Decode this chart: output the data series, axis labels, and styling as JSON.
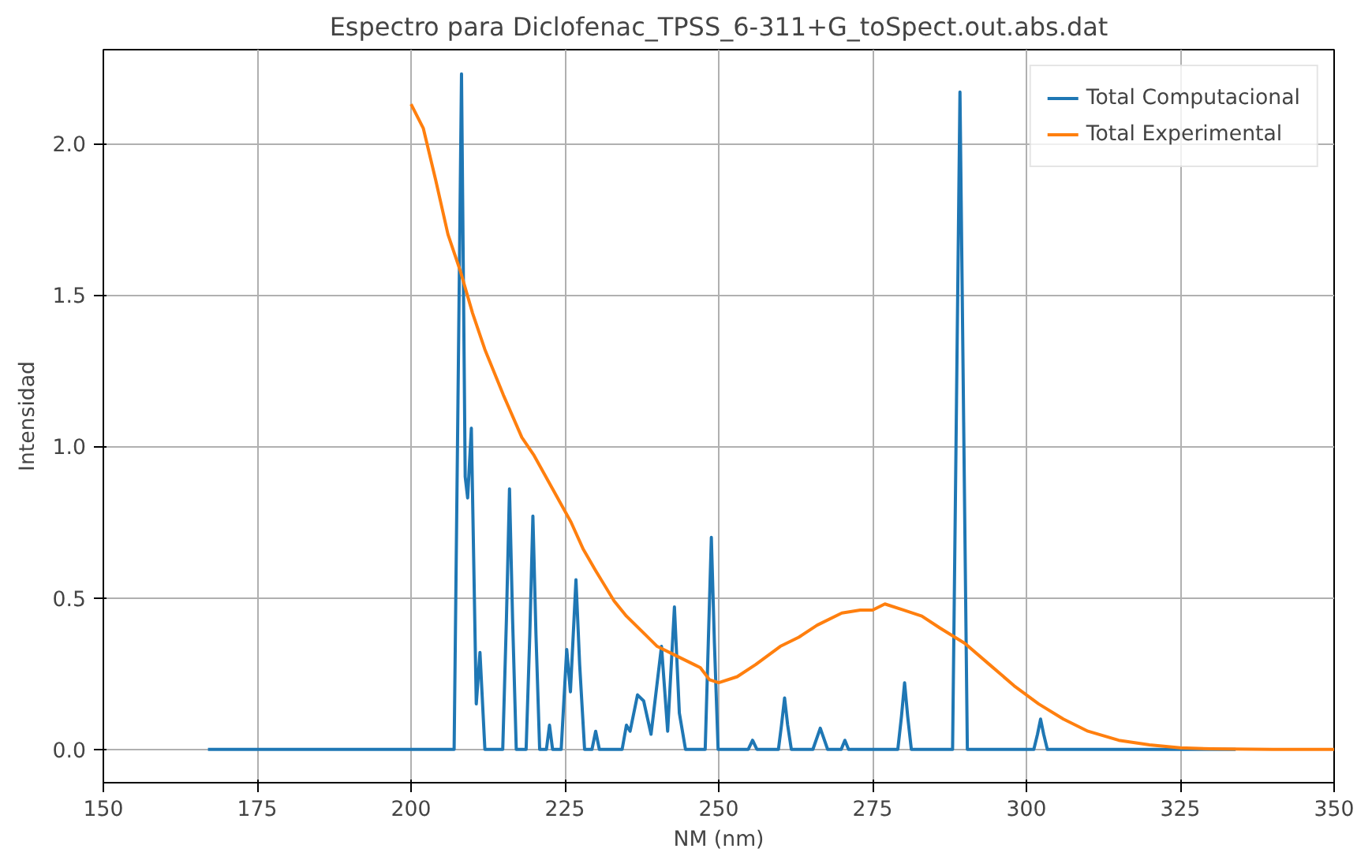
{
  "chart_data": {
    "type": "line",
    "title": "Espectro para Diclofenac_TPSS_6-311+G_toSpect.out.abs.dat",
    "xlabel": "NM (nm)",
    "ylabel": "Intensidad",
    "xlim": [
      150,
      350
    ],
    "xticks": [
      150,
      175,
      200,
      225,
      250,
      275,
      300,
      325,
      350
    ],
    "ylim": [
      -0.11,
      2.31
    ],
    "yticks": [
      {
        "value": 0,
        "label": "0.0"
      },
      {
        "value": 0.5,
        "label": "0.5"
      },
      {
        "value": 1,
        "label": "1.0"
      },
      {
        "value": 1.5,
        "label": "1.5"
      },
      {
        "value": 2,
        "label": "2.0"
      }
    ],
    "grid": true,
    "legend": "top right",
    "line_style": "solid",
    "series": [
      {
        "name": "Total Computacional",
        "color": "#1f77b4",
        "x": [
          167,
          207.0,
          207.6,
          208.2,
          208.8,
          209.2,
          209.8,
          210.6,
          211.2,
          212.0,
          214.9,
          215.5,
          216.0,
          216.5,
          217.1,
          218.7,
          219.3,
          219.8,
          220.3,
          220.9,
          222.0,
          222.5,
          223.0,
          224.4,
          225.3,
          225.9,
          226.8,
          227.4,
          228.2,
          229.4,
          230.0,
          230.6,
          234.3,
          235.0,
          235.6,
          236.8,
          237.8,
          239.0,
          240.7,
          241.7,
          242.8,
          243.6,
          244.6,
          247.8,
          248.3,
          248.8,
          249.3,
          249.9,
          254.8,
          255.5,
          256.2,
          259.7,
          260.2,
          260.7,
          261.2,
          261.8,
          265.3,
          266.5,
          267.7,
          269.9,
          270.5,
          271.1,
          279.1,
          279.7,
          280.2,
          280.7,
          281.3,
          288.0,
          288.6,
          289.2,
          289.8,
          290.4,
          301.2,
          301.8,
          302.3,
          302.8,
          303.4,
          334
        ],
        "values": [
          0,
          0,
          1.1,
          2.23,
          0.9,
          0.83,
          1.06,
          0.15,
          0.32,
          0,
          0,
          0.43,
          0.86,
          0.43,
          0,
          0,
          0.38,
          0.77,
          0.38,
          0,
          0,
          0.08,
          0,
          0,
          0.33,
          0.19,
          0.56,
          0.28,
          0,
          0,
          0.06,
          0,
          0,
          0.08,
          0.06,
          0.18,
          0.16,
          0.05,
          0.34,
          0.06,
          0.47,
          0.12,
          0,
          0,
          0.35,
          0.7,
          0.35,
          0,
          0,
          0.03,
          0,
          0,
          0.08,
          0.17,
          0.08,
          0,
          0,
          0.07,
          0,
          0,
          0.03,
          0,
          0,
          0.11,
          0.22,
          0.11,
          0,
          0,
          1.08,
          2.17,
          1.08,
          0,
          0,
          0.05,
          0.1,
          0.05,
          0,
          0
        ]
      },
      {
        "name": "Total Experimental",
        "color": "#ff7f0e",
        "x": [
          200,
          202,
          204,
          206,
          208,
          210,
          212,
          215,
          218,
          220,
          223,
          226,
          228,
          230,
          233,
          235,
          238,
          240,
          243,
          246,
          247,
          248.5,
          250,
          253,
          256,
          260,
          263,
          266,
          270,
          273,
          275,
          277,
          280,
          283,
          286,
          290,
          294,
          298,
          302,
          306,
          310,
          315,
          320,
          325,
          330,
          340,
          350
        ],
        "values": [
          2.13,
          2.05,
          1.88,
          1.7,
          1.58,
          1.44,
          1.32,
          1.17,
          1.03,
          0.97,
          0.86,
          0.75,
          0.66,
          0.59,
          0.49,
          0.44,
          0.38,
          0.34,
          0.31,
          0.28,
          0.27,
          0.23,
          0.22,
          0.24,
          0.28,
          0.34,
          0.37,
          0.41,
          0.45,
          0.46,
          0.46,
          0.48,
          0.46,
          0.44,
          0.4,
          0.35,
          0.28,
          0.21,
          0.15,
          0.1,
          0.06,
          0.03,
          0.015,
          0.005,
          0.002,
          0,
          0
        ]
      }
    ]
  }
}
